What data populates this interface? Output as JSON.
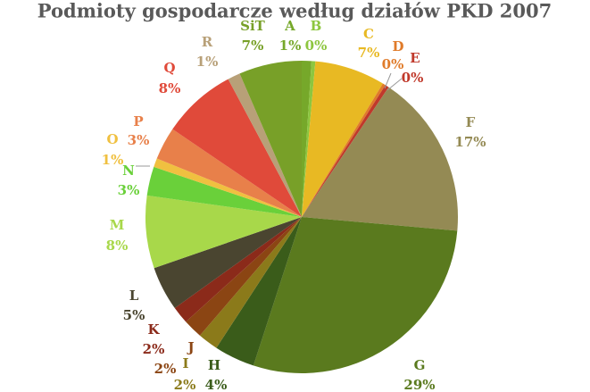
{
  "chart_data": {
    "type": "pie",
    "title": "Podmioty gospodarcze według działów PKD 2007",
    "categories": [
      "A",
      "B",
      "C",
      "D",
      "E",
      "F",
      "G",
      "H",
      "I",
      "J",
      "K",
      "L",
      "M",
      "N",
      "O",
      "P",
      "Q",
      "R",
      "SiT"
    ],
    "values": [
      1.0,
      0.4,
      7.3,
      0.3,
      0.4,
      17.0,
      28.6,
      4.2,
      2.1,
      2.0,
      1.8,
      4.6,
      7.5,
      3.0,
      0.9,
      3.4,
      7.7,
      1.3,
      6.5
    ],
    "value_labels": [
      "1%",
      "0%",
      "7%",
      "0%",
      "0%",
      "17%",
      "29%",
      "4%",
      "2%",
      "2%",
      "2%",
      "5%",
      "8%",
      "3%",
      "1%",
      "3%",
      "8%",
      "1%",
      "7%"
    ],
    "colors": [
      "#76a82a",
      "#8dc63f",
      "#e8b923",
      "#e07b2a",
      "#c0392b",
      "#948a54",
      "#5a7a1e",
      "#3a5c1a",
      "#8b7a1a",
      "#8b4513",
      "#8b2a1a",
      "#4a4530",
      "#a8d84a",
      "#6ad03a",
      "#f0c040",
      "#e8804a",
      "#e04a3a",
      "#b8a078",
      "#78a028"
    ]
  }
}
